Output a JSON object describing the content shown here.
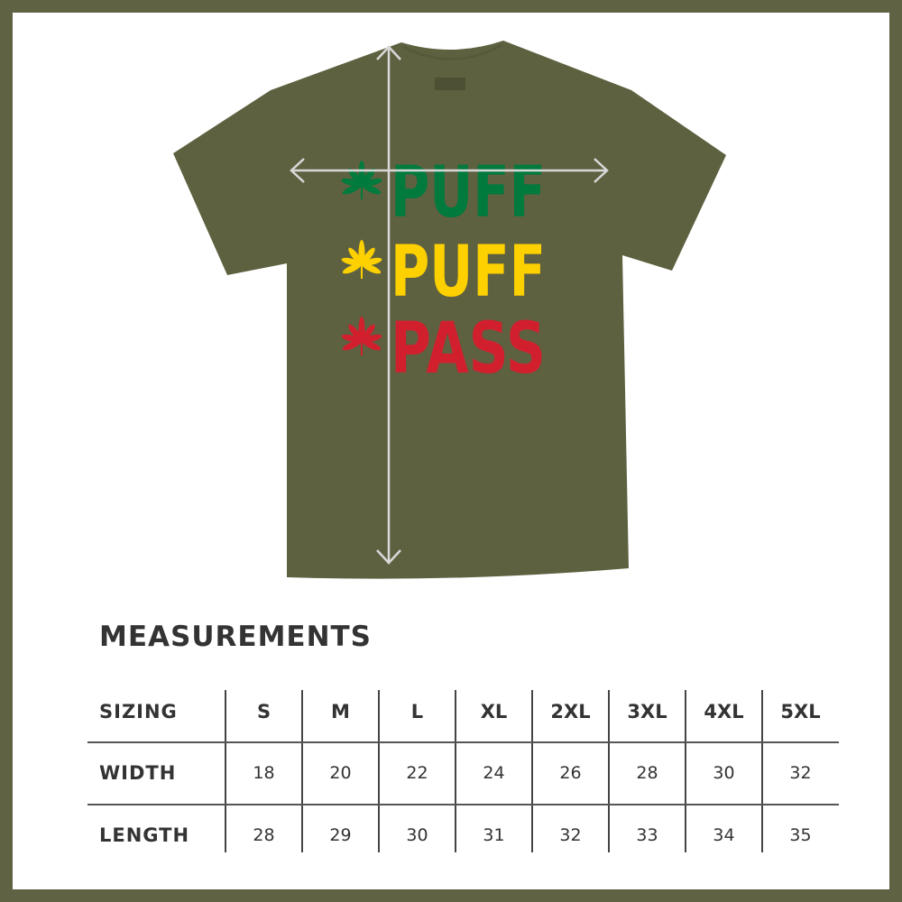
{
  "product": {
    "shirt_color": "#5e6140",
    "frame_color": "#5f6243",
    "print_lines": [
      {
        "text": "PUFF",
        "color": "#007a3d",
        "icon": "cannabis-leaf-icon"
      },
      {
        "text": "PUFF",
        "color": "#fdd000",
        "icon": "cannabis-leaf-icon"
      },
      {
        "text": "PASS",
        "color": "#d11f2e",
        "icon": "cannabis-leaf-icon"
      }
    ]
  },
  "measurements": {
    "title": "MEASUREMENTS",
    "header": [
      "SIZING",
      "S",
      "M",
      "L",
      "XL",
      "2XL",
      "3XL",
      "4XL",
      "5XL"
    ],
    "rows": [
      [
        "WIDTH",
        "18",
        "20",
        "22",
        "24",
        "26",
        "28",
        "30",
        "32"
      ],
      [
        "LENGTH",
        "28",
        "29",
        "30",
        "31",
        "32",
        "33",
        "34",
        "35"
      ]
    ]
  }
}
